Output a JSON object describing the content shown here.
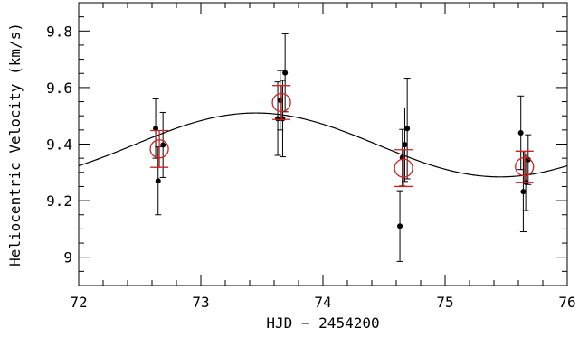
{
  "chart_data": {
    "type": "scatter",
    "xlabel": "HJD − 2454200",
    "ylabel": "Heliocentric Velocity (km/s)",
    "xlim": [
      72,
      76
    ],
    "ylim": [
      8.9,
      9.9
    ],
    "x_ticks": [
      72,
      73,
      74,
      75,
      76
    ],
    "y_ticks": [
      9,
      9.2,
      9.4,
      9.6,
      9.8
    ],
    "grid": false,
    "colors": {
      "axes": "#000000",
      "points": "#000000",
      "binned": "#cc2222",
      "model": "#000000"
    },
    "series": [
      {
        "type": "scatter-errorbar",
        "points": [
          {
            "x": 72.63,
            "y": 9.455,
            "err": 0.105
          },
          {
            "x": 72.65,
            "y": 9.27,
            "err": 0.12
          },
          {
            "x": 72.69,
            "y": 9.397,
            "err": 0.115
          },
          {
            "x": 73.63,
            "y": 9.49,
            "err": 0.13
          },
          {
            "x": 73.65,
            "y": 9.555,
            "err": 0.105
          },
          {
            "x": 73.67,
            "y": 9.49,
            "err": 0.135
          },
          {
            "x": 73.69,
            "y": 9.652,
            "err": 0.138
          },
          {
            "x": 74.63,
            "y": 9.11,
            "err": 0.125
          },
          {
            "x": 74.65,
            "y": 9.352,
            "err": 0.1
          },
          {
            "x": 74.67,
            "y": 9.398,
            "err": 0.13
          },
          {
            "x": 74.69,
            "y": 9.455,
            "err": 0.178
          },
          {
            "x": 75.62,
            "y": 9.44,
            "err": 0.13
          },
          {
            "x": 75.64,
            "y": 9.232,
            "err": 0.142
          },
          {
            "x": 75.66,
            "y": 9.265,
            "err": 0.1
          },
          {
            "x": 75.68,
            "y": 9.345,
            "err": 0.088
          }
        ]
      },
      {
        "type": "binned-average",
        "points": [
          {
            "x": 72.66,
            "y": 9.383,
            "err": 0.065
          },
          {
            "x": 73.66,
            "y": 9.547,
            "err": 0.06
          },
          {
            "x": 74.66,
            "y": 9.315,
            "err": 0.065
          },
          {
            "x": 75.65,
            "y": 9.32,
            "err": 0.055
          }
        ]
      },
      {
        "type": "model-curve",
        "function": "sine",
        "mean": 9.397,
        "amplitude": 0.113,
        "peak_x": 73.45,
        "period": 4.0
      }
    ]
  }
}
